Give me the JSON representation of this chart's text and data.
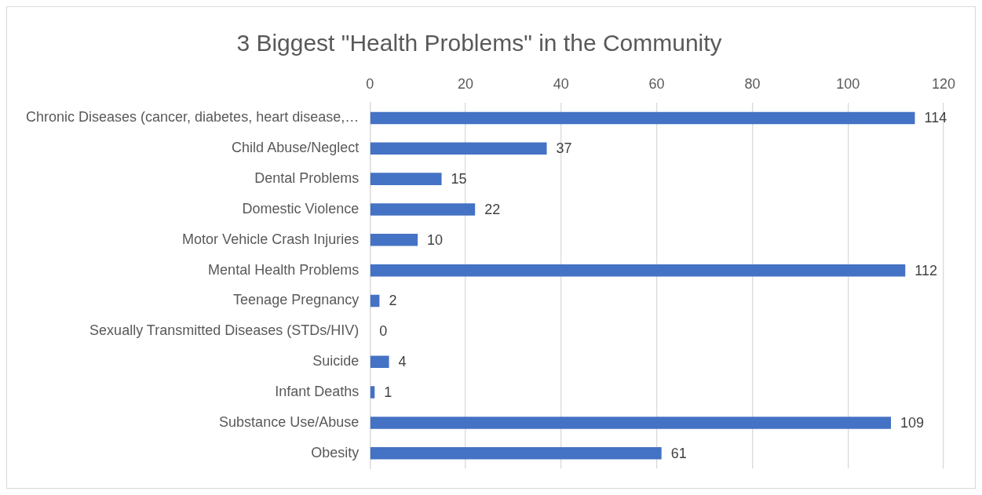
{
  "chart_data": {
    "type": "bar",
    "orientation": "horizontal",
    "title": "3 Biggest \"Health Problems\" in the Community",
    "categories": [
      "Chronic Diseases (cancer, diabetes, heart disease,…",
      "Child Abuse/Neglect",
      "Dental Problems",
      "Domestic Violence",
      "Motor Vehicle Crash Injuries",
      "Mental Health Problems",
      "Teenage Pregnancy",
      "Sexually Transmitted Diseases (STDs/HIV)",
      "Suicide",
      "Infant Deaths",
      "Substance Use/Abuse",
      "Obesity"
    ],
    "values": [
      114,
      37,
      15,
      22,
      10,
      112,
      2,
      0,
      4,
      1,
      109,
      61
    ],
    "color": "#4472c4",
    "xlim": [
      0,
      120
    ],
    "xticks": [
      0,
      20,
      40,
      60,
      80,
      100,
      120
    ],
    "grid": "x",
    "legend": false,
    "data_labels": true
  }
}
